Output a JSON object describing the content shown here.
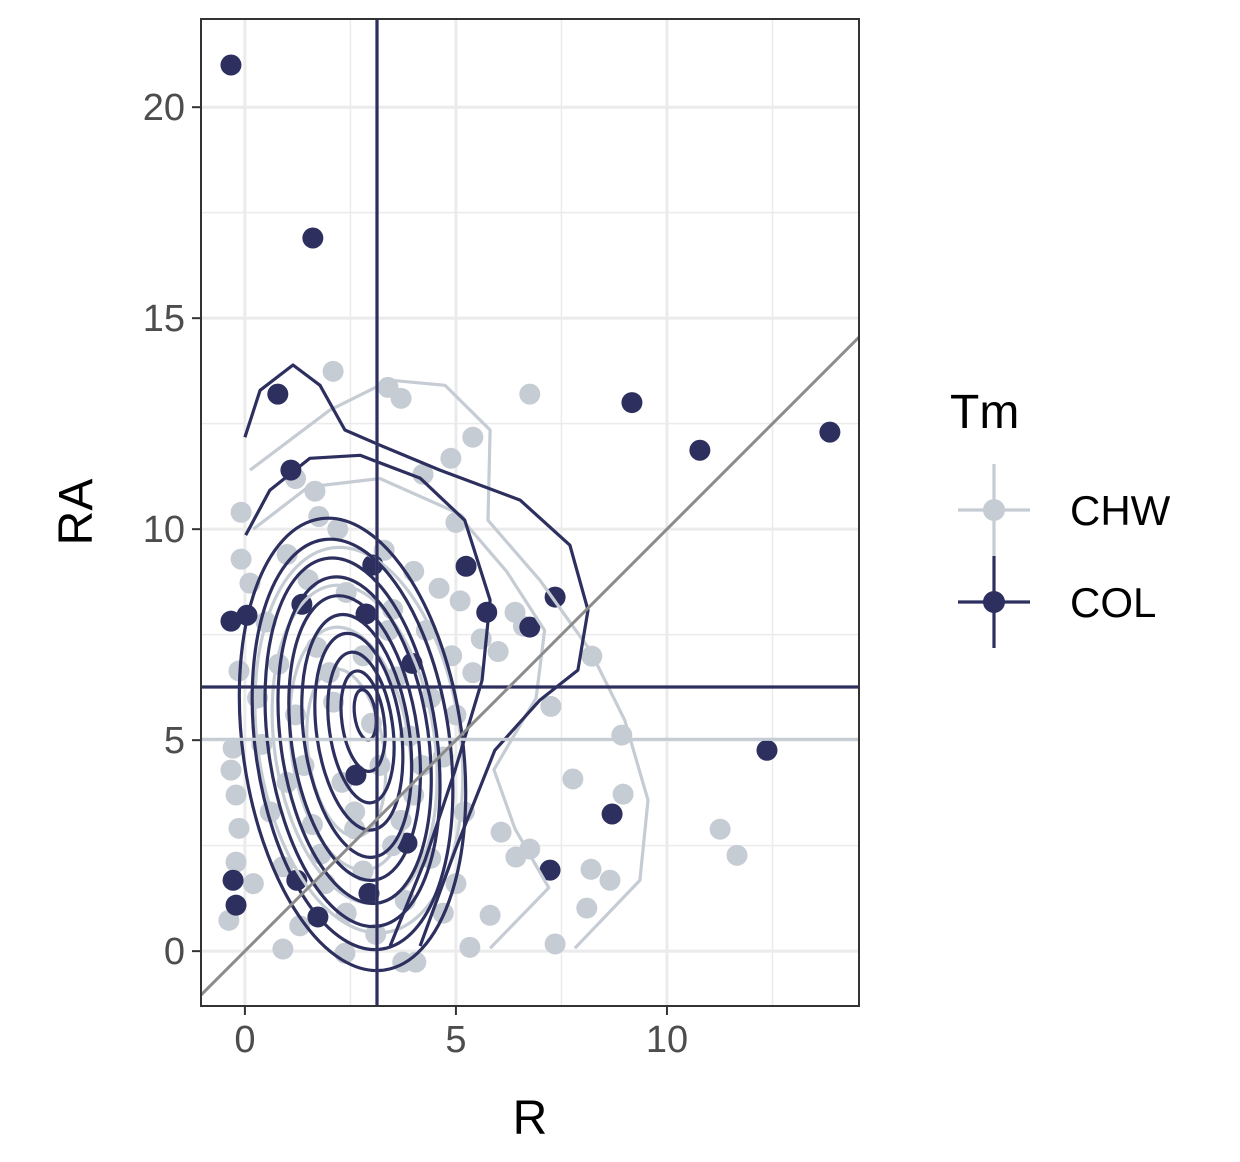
{
  "chart_data": {
    "type": "scatter",
    "title": "",
    "xlabel": "R",
    "ylabel": "RA",
    "xlim": [
      -1.04,
      14.55
    ],
    "ylim": [
      -1.3,
      22.09
    ],
    "x_ticks": [
      0,
      5,
      10
    ],
    "y_ticks": [
      0,
      5,
      10,
      15,
      20
    ],
    "x_tick_labels": [
      "0",
      "5",
      "10"
    ],
    "y_tick_labels": [
      "0",
      "5",
      "10",
      "15",
      "20"
    ],
    "grid": true,
    "legend": {
      "title": "Tm",
      "position": "right",
      "entries": [
        "CHW",
        "COL"
      ]
    },
    "reference_line": {
      "type": "identity",
      "slope": 1,
      "intercept": 0,
      "color": "#8c8c8c"
    },
    "series": [
      {
        "name": "CHW",
        "color": "#c6ccd4",
        "mean_x": 3.13,
        "mean_y": 5.02,
        "points": [
          [
            2.09,
            13.74
          ],
          [
            3.39,
            13.36
          ],
          [
            3.7,
            13.1
          ],
          [
            6.75,
            13.2
          ],
          [
            5.4,
            12.18
          ],
          [
            4.88,
            11.68
          ],
          [
            4.22,
            11.3
          ],
          [
            -0.09,
            10.4
          ],
          [
            5.0,
            10.16
          ],
          [
            -0.09,
            9.29
          ],
          [
            0.12,
            8.72
          ],
          [
            1.66,
            10.9
          ],
          [
            1.75,
            10.3
          ],
          [
            8.22,
            6.99
          ],
          [
            7.25,
            5.8
          ],
          [
            8.93,
            5.12
          ],
          [
            7.77,
            4.08
          ],
          [
            8.96,
            3.72
          ],
          [
            11.26,
            2.89
          ],
          [
            11.66,
            2.27
          ],
          [
            6.07,
            2.82
          ],
          [
            6.42,
            2.23
          ],
          [
            6.75,
            2.42
          ],
          [
            8.2,
            1.94
          ],
          [
            8.65,
            1.68
          ],
          [
            8.1,
            1.02
          ],
          [
            7.35,
            0.17
          ],
          [
            5.33,
            0.09
          ],
          [
            5.81,
            0.85
          ],
          [
            3.74,
            -0.26
          ],
          [
            4.05,
            -0.26
          ],
          [
            2.37,
            -0.05
          ],
          [
            0.9,
            0.05
          ],
          [
            -0.38,
            0.73
          ],
          [
            -0.33,
            4.29
          ],
          [
            -0.28,
            4.81
          ],
          [
            -0.21,
            3.7
          ],
          [
            -0.14,
            2.91
          ],
          [
            -0.21,
            2.11
          ],
          [
            -0.14,
            6.64
          ],
          [
            6.4,
            8.03
          ],
          [
            6.6,
            7.7
          ],
          [
            1.2,
            11.2
          ],
          [
            2.2,
            10.0
          ],
          [
            3.3,
            9.5
          ],
          [
            4.0,
            9.0
          ],
          [
            4.6,
            8.6
          ],
          [
            5.1,
            8.3
          ],
          [
            5.6,
            7.4
          ],
          [
            6.0,
            7.1
          ],
          [
            1.0,
            9.4
          ],
          [
            1.5,
            8.8
          ],
          [
            2.4,
            8.5
          ],
          [
            3.5,
            8.1
          ],
          [
            4.3,
            7.6
          ],
          [
            4.9,
            7.0
          ],
          [
            5.4,
            6.6
          ],
          [
            0.5,
            7.8
          ],
          [
            0.8,
            6.8
          ],
          [
            1.7,
            7.2
          ],
          [
            2.8,
            7.0
          ],
          [
            3.6,
            6.5
          ],
          [
            4.4,
            6.0
          ],
          [
            5.0,
            5.6
          ],
          [
            0.3,
            6.0
          ],
          [
            1.2,
            5.6
          ],
          [
            2.1,
            5.9
          ],
          [
            3.0,
            5.4
          ],
          [
            3.9,
            5.1
          ],
          [
            4.7,
            4.6
          ],
          [
            0.4,
            4.9
          ],
          [
            1.4,
            4.4
          ],
          [
            2.3,
            4.0
          ],
          [
            3.2,
            4.4
          ],
          [
            4.0,
            3.7
          ],
          [
            5.2,
            3.3
          ],
          [
            0.6,
            3.3
          ],
          [
            1.6,
            3.0
          ],
          [
            2.6,
            2.9
          ],
          [
            3.5,
            2.5
          ],
          [
            4.4,
            2.2
          ],
          [
            5.0,
            1.6
          ],
          [
            0.9,
            2.0
          ],
          [
            1.9,
            1.6
          ],
          [
            2.8,
            1.9
          ],
          [
            3.8,
            1.2
          ],
          [
            4.7,
            0.9
          ],
          [
            1.3,
            0.6
          ],
          [
            2.4,
            0.9
          ],
          [
            3.1,
            0.4
          ],
          [
            0.2,
            1.6
          ],
          [
            1.0,
            4.0
          ],
          [
            2.0,
            6.6
          ],
          [
            3.4,
            7.6
          ],
          [
            2.6,
            3.3
          ],
          [
            1.8,
            2.3
          ],
          [
            3.7,
            3.1
          ],
          [
            4.2,
            4.4
          ]
        ],
        "contours": [
          [
            [
              0.12,
              11.4
            ],
            [
              2.01,
              12.82
            ],
            [
              3.44,
              13.53
            ],
            [
              4.74,
              13.41
            ],
            [
              5.81,
              12.35
            ],
            [
              5.76,
              10.21
            ],
            [
              6.99,
              8.79
            ],
            [
              8.18,
              7.13
            ],
            [
              9.0,
              5.47
            ],
            [
              9.55,
              3.58
            ],
            [
              9.36,
              1.68
            ],
            [
              7.82,
              0.07
            ]
          ],
          [
            [
              5.81,
              0.07
            ],
            [
              7.2,
              1.5
            ],
            [
              6.4,
              2.9
            ],
            [
              5.9,
              4.3
            ],
            [
              6.9,
              6.0
            ],
            [
              7.1,
              7.6
            ],
            [
              6.2,
              9.0
            ],
            [
              5.0,
              10.4
            ],
            [
              3.2,
              11.2
            ],
            [
              1.5,
              11.0
            ],
            [
              0.2,
              10.0
            ]
          ]
        ],
        "contour_ellipses": [
          {
            "cx": 2.7,
            "cy": 5.0,
            "rx": 2.4,
            "ry": 4.6
          },
          {
            "cx": 2.6,
            "cy": 4.9,
            "rx": 1.9,
            "ry": 3.8
          },
          {
            "cx": 2.5,
            "cy": 4.8,
            "rx": 1.4,
            "ry": 2.9
          },
          {
            "cx": 2.4,
            "cy": 4.7,
            "rx": 0.9,
            "ry": 2.0
          }
        ]
      },
      {
        "name": "COL",
        "color": "#2d2f5f",
        "mean_x": 3.13,
        "mean_y": 6.26,
        "points": [
          [
            -0.33,
            21.0
          ],
          [
            1.61,
            16.9
          ],
          [
            0.78,
            13.2
          ],
          [
            9.17,
            13.0
          ],
          [
            10.78,
            11.87
          ],
          [
            13.86,
            12.3
          ],
          [
            12.37,
            4.76
          ],
          [
            8.7,
            3.25
          ],
          [
            7.23,
            1.92
          ],
          [
            -0.33,
            7.82
          ],
          [
            0.05,
            7.96
          ],
          [
            1.09,
            11.4
          ],
          [
            1.35,
            8.22
          ],
          [
            3.03,
            9.15
          ],
          [
            2.87,
            7.99
          ],
          [
            5.24,
            9.12
          ],
          [
            5.73,
            8.03
          ],
          [
            6.75,
            7.68
          ],
          [
            7.35,
            8.39
          ],
          [
            3.96,
            6.82
          ],
          [
            2.63,
            4.17
          ],
          [
            -0.21,
            1.09
          ],
          [
            -0.28,
            1.68
          ],
          [
            2.94,
            1.37
          ],
          [
            1.73,
            0.81
          ],
          [
            1.23,
            1.68
          ],
          [
            3.84,
            2.56
          ]
        ],
        "contours": [
          [
            [
              0,
              12.18
            ],
            [
              0.36,
              13.29
            ],
            [
              1.14,
              13.89
            ],
            [
              1.78,
              13.41
            ],
            [
              2.37,
              12.35
            ],
            [
              3.2,
              11.99
            ],
            [
              4.62,
              11.4
            ],
            [
              6.52,
              10.69
            ],
            [
              7.7,
              9.62
            ],
            [
              8.13,
              8.08
            ],
            [
              7.89,
              6.66
            ],
            [
              6.99,
              5.95
            ],
            [
              5.92,
              4.76
            ],
            [
              4.98,
              2.39
            ],
            [
              4.15,
              0.12
            ]
          ],
          [
            [
              0.02,
              9.86
            ],
            [
              0.59,
              10.92
            ],
            [
              1.54,
              11.68
            ],
            [
              2.73,
              11.75
            ],
            [
              4.15,
              11.21
            ],
            [
              5.21,
              10.21
            ],
            [
              5.81,
              8.32
            ],
            [
              5.62,
              6.42
            ],
            [
              4.98,
              4.29
            ],
            [
              4.27,
              2.16
            ],
            [
              3.44,
              0.12
            ]
          ]
        ],
        "contour_ellipses": [
          {
            "cx": 2.55,
            "cy": 4.9,
            "rx": 2.6,
            "ry": 5.4
          },
          {
            "cx": 2.55,
            "cy": 4.9,
            "rx": 2.3,
            "ry": 4.9
          },
          {
            "cx": 2.55,
            "cy": 4.95,
            "rx": 2.0,
            "ry": 4.4
          },
          {
            "cx": 2.6,
            "cy": 5.0,
            "rx": 1.75,
            "ry": 3.9
          },
          {
            "cx": 2.6,
            "cy": 5.05,
            "rx": 1.5,
            "ry": 3.4
          },
          {
            "cx": 2.65,
            "cy": 5.1,
            "rx": 1.25,
            "ry": 2.9
          },
          {
            "cx": 2.7,
            "cy": 5.2,
            "rx": 1.0,
            "ry": 2.35
          },
          {
            "cx": 2.75,
            "cy": 5.3,
            "rx": 0.75,
            "ry": 1.8
          },
          {
            "cx": 2.8,
            "cy": 5.45,
            "rx": 0.5,
            "ry": 1.2
          },
          {
            "cx": 2.85,
            "cy": 5.6,
            "rx": 0.25,
            "ry": 0.6
          }
        ]
      }
    ]
  }
}
